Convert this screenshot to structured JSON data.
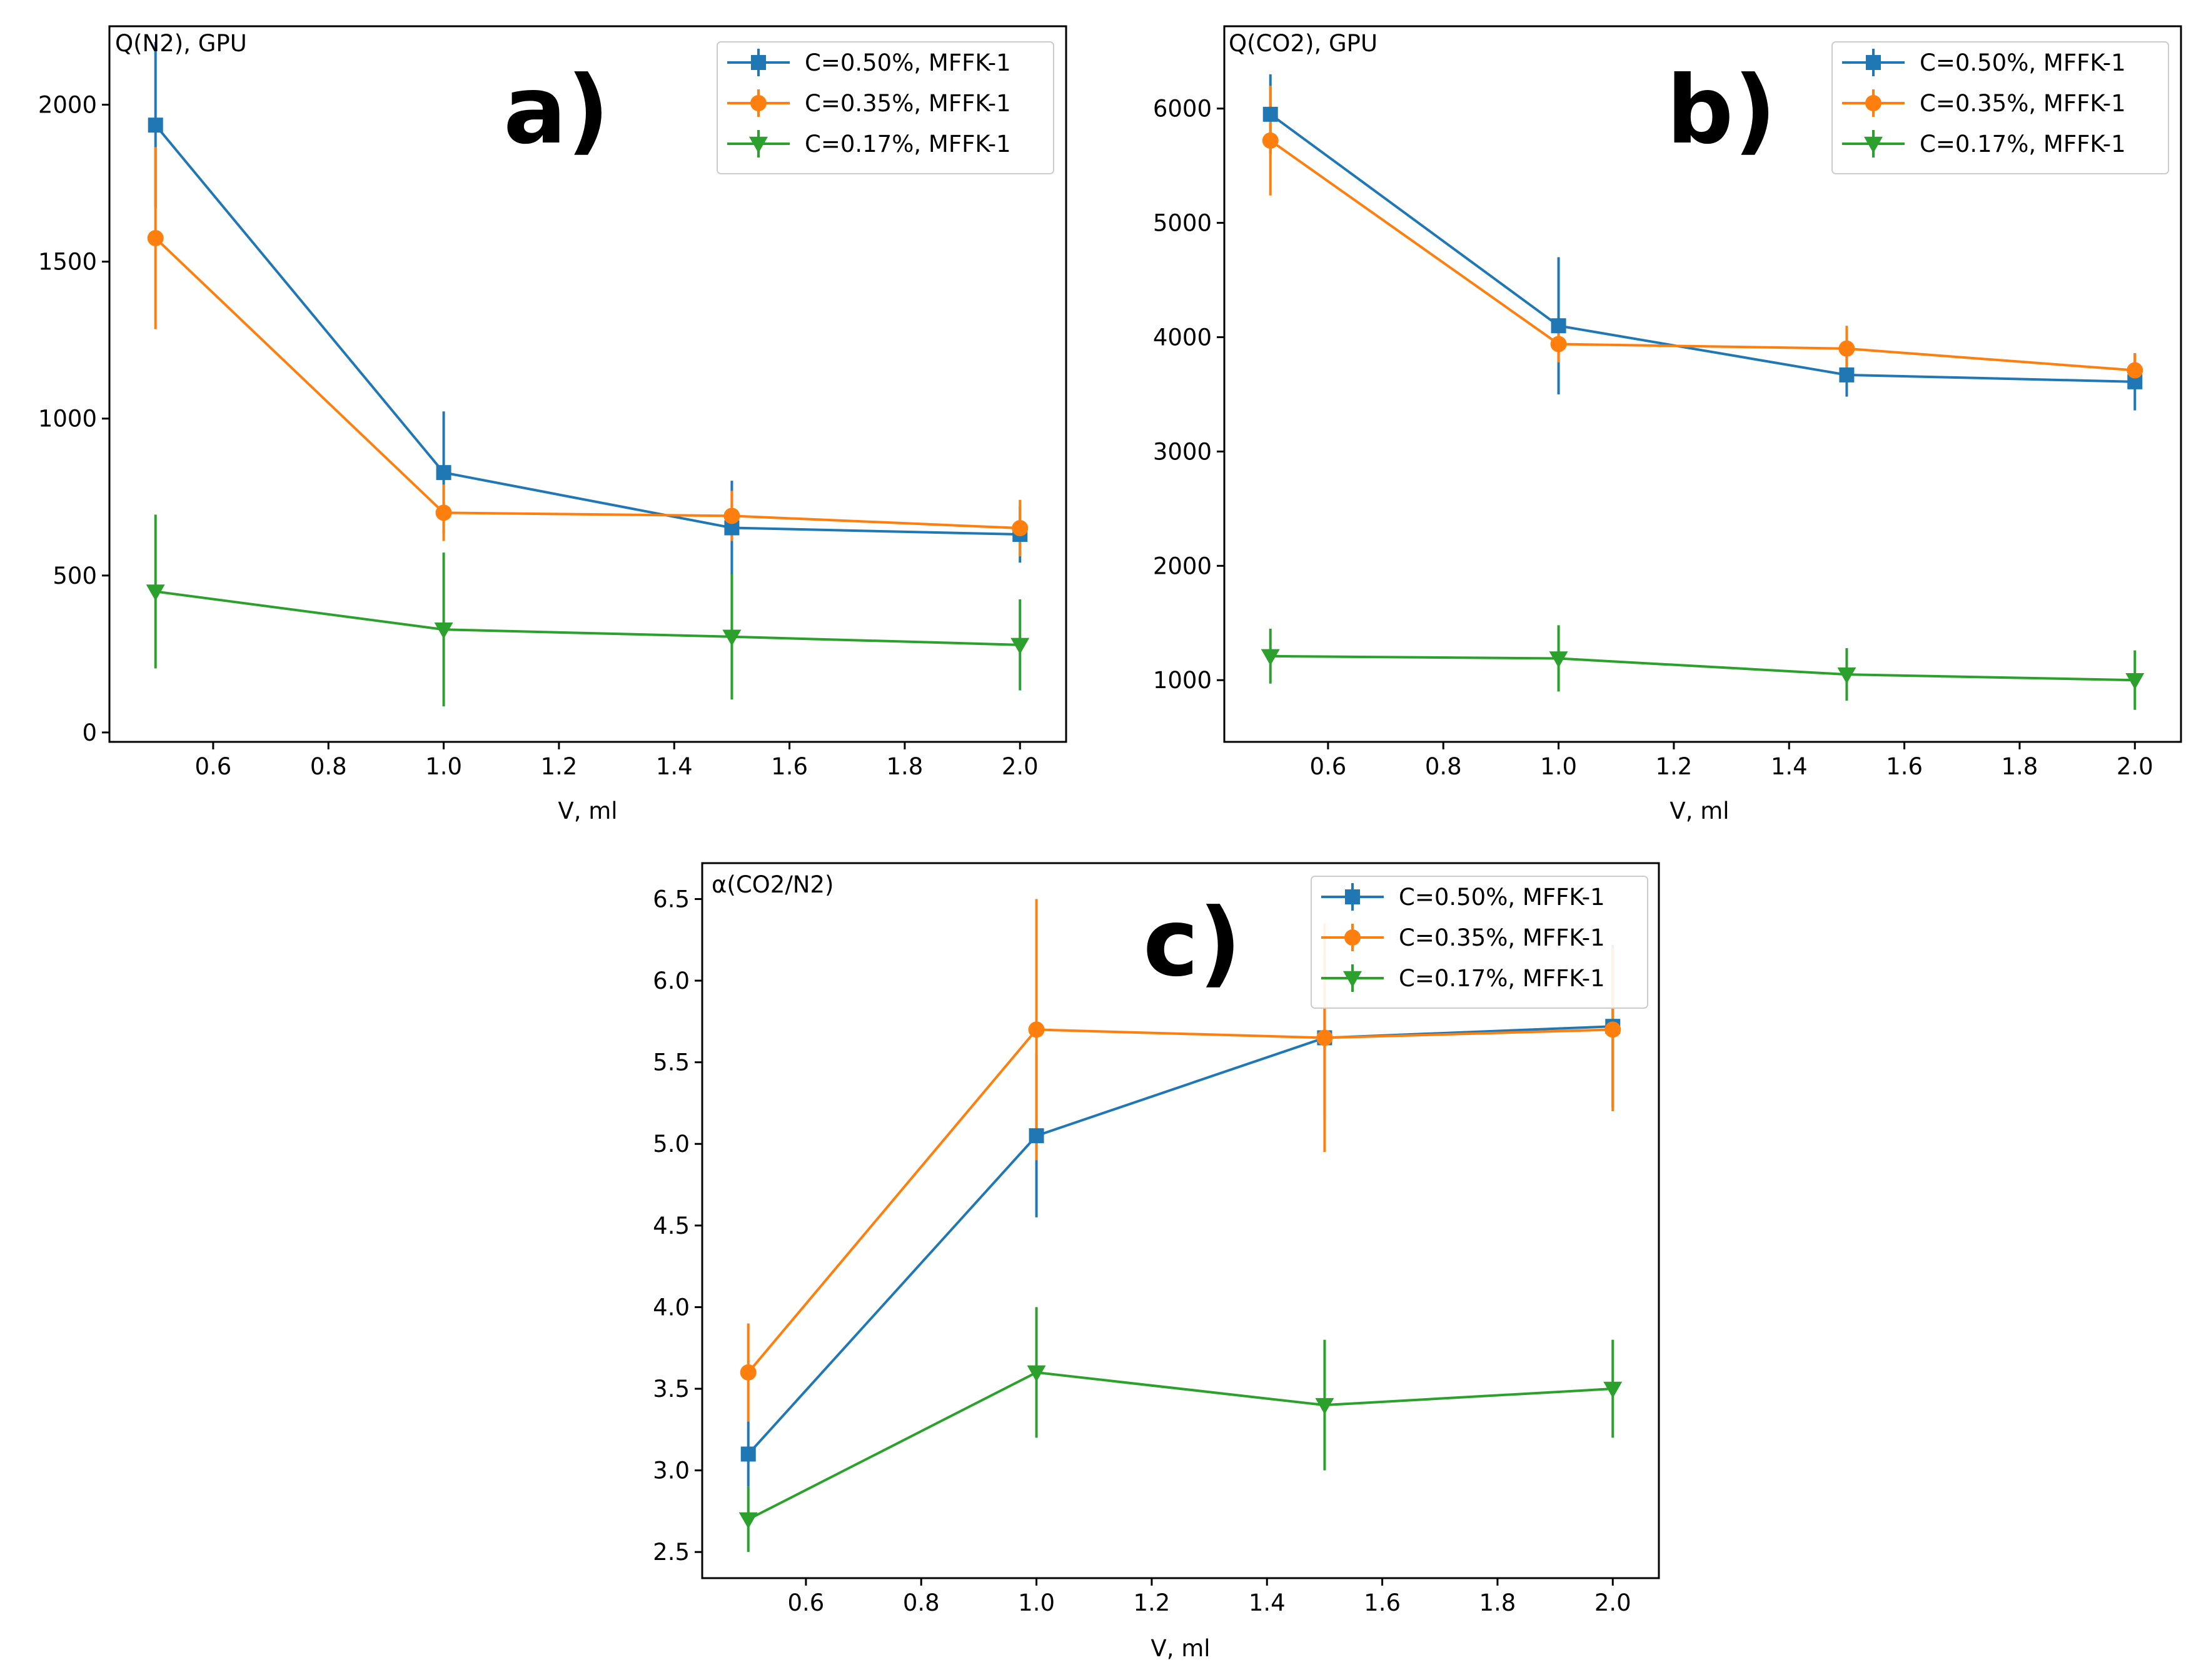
{
  "chart_data": [
    {
      "type": "line",
      "panel_label": "a)",
      "title": "",
      "ylabel": "Q(N2), GPU",
      "xlabel": "V, ml",
      "xlim": [
        0.42,
        2.08
      ],
      "ylim": [
        -30,
        2250
      ],
      "xticks": [
        0.6,
        0.8,
        1.0,
        1.2,
        1.4,
        1.6,
        1.8,
        2.0
      ],
      "xtick_labels": [
        "0.6",
        "0.8",
        "1.0",
        "1.2",
        "1.4",
        "1.6",
        "1.8",
        "2.0"
      ],
      "yticks": [
        0,
        500,
        1000,
        1500,
        2000
      ],
      "ytick_labels": [
        "0",
        "500",
        "1000",
        "1500",
        "2000"
      ],
      "legend_position": "top-right",
      "x": [
        0.5,
        1.0,
        1.5,
        2.0
      ],
      "series": [
        {
          "name": "C=0.50%, MFFK-1",
          "color": "#1f77b4",
          "marker": "square",
          "values": [
            1935,
            828,
            652,
            631
          ],
          "errors": [
            265,
            195,
            150,
            90
          ]
        },
        {
          "name": "C=0.35%, MFFK-1",
          "color": "#ff7f0e",
          "marker": "circle",
          "values": [
            1575,
            700,
            690,
            651
          ],
          "errors": [
            290,
            90,
            80,
            90
          ]
        },
        {
          "name": "C=0.17%, MFFK-1",
          "color": "#2ca02c",
          "marker": "triangle-down",
          "values": [
            449,
            328,
            305,
            279
          ],
          "errors": [
            245,
            245,
            200,
            145
          ]
        }
      ]
    },
    {
      "type": "line",
      "panel_label": "b)",
      "title": "",
      "ylabel": "Q(CO2), GPU",
      "xlabel": "V, ml",
      "xlim": [
        0.42,
        2.08
      ],
      "ylim": [
        460,
        6720
      ],
      "xticks": [
        0.6,
        0.8,
        1.0,
        1.2,
        1.4,
        1.6,
        1.8,
        2.0
      ],
      "xtick_labels": [
        "0.6",
        "0.8",
        "1.0",
        "1.2",
        "1.4",
        "1.6",
        "1.8",
        "2.0"
      ],
      "yticks": [
        1000,
        2000,
        3000,
        4000,
        5000,
        6000
      ],
      "ytick_labels": [
        "1000",
        "2000",
        "3000",
        "4000",
        "5000",
        "6000"
      ],
      "legend_position": "top-right",
      "x": [
        0.5,
        1.0,
        1.5,
        2.0
      ],
      "series": [
        {
          "name": "C=0.50%, MFFK-1",
          "color": "#1f77b4",
          "marker": "square",
          "values": [
            5950,
            4100,
            3670,
            3610
          ],
          "errors": [
            350,
            600,
            190,
            250
          ]
        },
        {
          "name": "C=0.35%, MFFK-1",
          "color": "#ff7f0e",
          "marker": "circle",
          "values": [
            5720,
            3940,
            3900,
            3710
          ],
          "errors": [
            480,
            160,
            200,
            150
          ]
        },
        {
          "name": "C=0.17%, MFFK-1",
          "color": "#2ca02c",
          "marker": "triangle-down",
          "values": [
            1210,
            1190,
            1050,
            1000
          ],
          "errors": [
            240,
            290,
            230,
            260
          ]
        }
      ]
    },
    {
      "type": "line",
      "panel_label": "c)",
      "title": "",
      "ylabel": "α(CO2/N2)",
      "xlabel": "V, ml",
      "xlim": [
        0.42,
        2.08
      ],
      "ylim": [
        2.34,
        6.72
      ],
      "xticks": [
        0.6,
        0.8,
        1.0,
        1.2,
        1.4,
        1.6,
        1.8,
        2.0
      ],
      "xtick_labels": [
        "0.6",
        "0.8",
        "1.0",
        "1.2",
        "1.4",
        "1.6",
        "1.8",
        "2.0"
      ],
      "yticks": [
        2.5,
        3.0,
        3.5,
        4.0,
        4.5,
        5.0,
        5.5,
        6.0,
        6.5
      ],
      "ytick_labels": [
        "2.5",
        "3.0",
        "3.5",
        "4.0",
        "4.5",
        "5.0",
        "5.5",
        "6.0",
        "6.5"
      ],
      "legend_position": "top-right",
      "x": [
        0.5,
        1.0,
        1.5,
        2.0
      ],
      "series": [
        {
          "name": "C=0.50%, MFFK-1",
          "color": "#1f77b4",
          "marker": "square",
          "values": [
            3.1,
            5.05,
            5.65,
            5.72
          ],
          "errors": [
            0.2,
            0.5,
            0.5,
            0.5
          ]
        },
        {
          "name": "C=0.35%, MFFK-1",
          "color": "#ff7f0e",
          "marker": "circle",
          "values": [
            3.6,
            5.7,
            5.65,
            5.7
          ],
          "errors": [
            0.3,
            0.8,
            0.7,
            0.5
          ]
        },
        {
          "name": "C=0.17%, MFFK-1",
          "color": "#2ca02c",
          "marker": "triangle-down",
          "values": [
            2.7,
            3.6,
            3.4,
            3.5
          ],
          "errors": [
            0.2,
            0.4,
            0.4,
            0.3
          ]
        }
      ]
    }
  ]
}
